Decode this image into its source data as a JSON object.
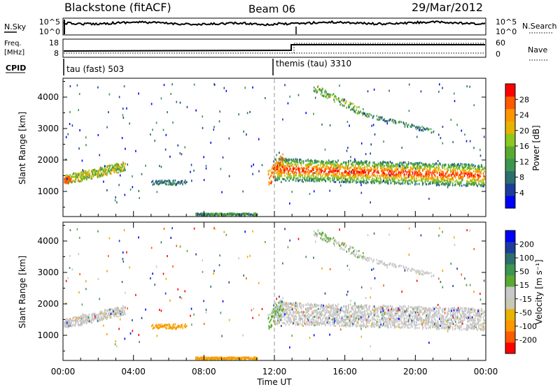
{
  "header": {
    "title": "Blackstone (fitACF)",
    "beam": "Beam 06",
    "date": "29/Mar/2012"
  },
  "noise_panel": {
    "left_label": "N.Sky",
    "right_label": "N.Search",
    "left_ticks": [
      "10^5",
      "10^0"
    ],
    "right_ticks": [
      "10^5",
      "10^0"
    ]
  },
  "freq_panel": {
    "label_line1": "Freq.",
    "label_line2": "[MHz]",
    "left_ticks": [
      "18",
      "8"
    ],
    "right_label": "Nave",
    "right_ticks": [
      "60",
      "0"
    ]
  },
  "cpid": {
    "label": "CPID",
    "modes": [
      {
        "name": "tau (fast) 503",
        "start_hour": 0
      },
      {
        "name": "themis (tau) 3310",
        "start_hour": 12.0
      }
    ]
  },
  "colors": {
    "power": [
      "#0000ff",
      "#1e3c9b",
      "#2d6e6e",
      "#3c9650",
      "#5aaa32",
      "#8cc81e",
      "#e6b400",
      "#ff9600",
      "#ff5a00",
      "#ff0000"
    ],
    "velocity": [
      "#ff0000",
      "#ff5a00",
      "#ff9600",
      "#e6b400",
      "#c8c8b4",
      "#c8c8c8",
      "#5aaa32",
      "#3c9650",
      "#2d6e6e",
      "#1e3c9b",
      "#0000ff"
    ]
  },
  "chart_data": [
    {
      "type": "heatmap",
      "name": "power",
      "ylabel": "Slant Range [km]",
      "xlabel": "",
      "xlim": [
        0,
        24
      ],
      "ylim": [
        200,
        4600
      ],
      "yticks": [
        "1000",
        "2000",
        "3000",
        "4000"
      ],
      "colorbar": {
        "label": "Power [dB]",
        "ticks": [
          "4",
          "8",
          "12",
          "16",
          "20",
          "24",
          "28"
        ]
      }
    },
    {
      "type": "heatmap",
      "name": "velocity",
      "ylabel": "Slant Range [km]",
      "xlabel": "Time UT",
      "xlim": [
        0,
        24
      ],
      "ylim": [
        200,
        4600
      ],
      "yticks": [
        "1000",
        "2000",
        "3000",
        "4000"
      ],
      "xticks": [
        "00:00",
        "04:00",
        "08:00",
        "12:00",
        "16:00",
        "20:00",
        "00:00"
      ],
      "colorbar": {
        "label": "Velocity [m s⁻¹]",
        "ticks": [
          "200",
          "100",
          "50",
          "15",
          "-15",
          "-50",
          "-100",
          "-200"
        ]
      }
    }
  ]
}
